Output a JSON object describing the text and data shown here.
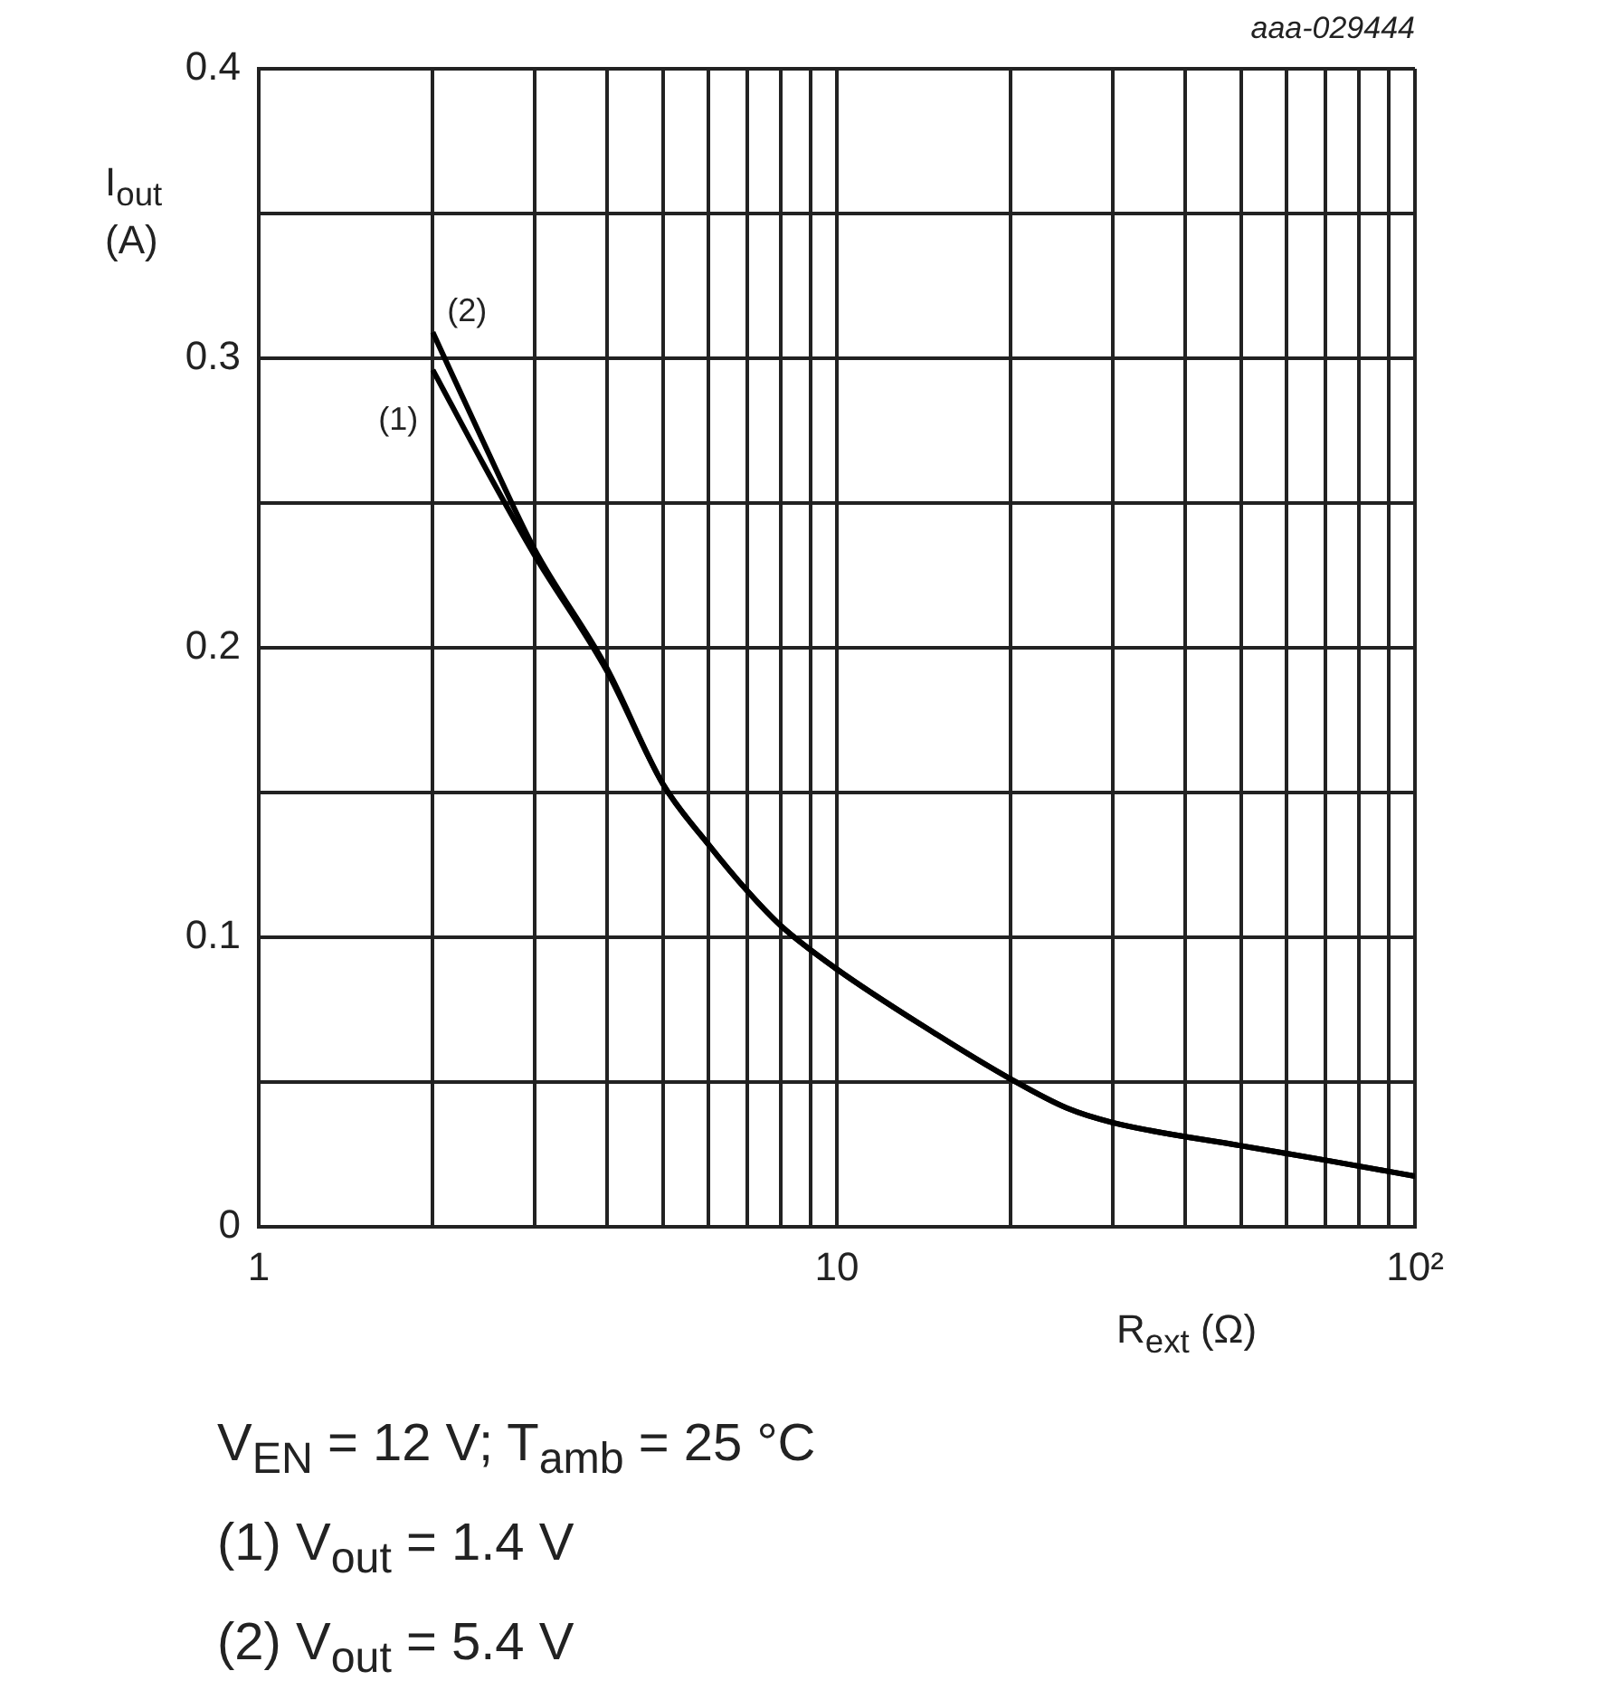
{
  "chart_data": {
    "type": "line",
    "xlabel": "R$_{ext}$ (Ω)",
    "ylabel": "I$_{out}$ (A)",
    "log": "x",
    "grid": true,
    "legend": false,
    "marker": "none",
    "line_style": "solid",
    "xlim": [
      1,
      100
    ],
    "ylim": [
      0,
      0.4
    ],
    "xticks": [
      1,
      {
        "value": 2,
        "label": null
      },
      {
        "value": 3,
        "label": null
      },
      {
        "value": 4,
        "label": null
      },
      {
        "value": 5,
        "label": null
      },
      {
        "value": 6,
        "label": null
      },
      {
        "value": 7,
        "label": null
      },
      {
        "value": 8,
        "label": null
      },
      {
        "value": 9,
        "label": null
      },
      10,
      {
        "value": 20,
        "label": null
      },
      {
        "value": 30,
        "label": null
      },
      {
        "value": 40,
        "label": null
      },
      {
        "value": 50,
        "label": null
      },
      {
        "value": 60,
        "label": null
      },
      {
        "value": 70,
        "label": null
      },
      {
        "value": 80,
        "label": null
      },
      {
        "value": 90,
        "label": null
      },
      {
        "value": 100,
        "label": "10²"
      }
    ],
    "yticks": [
      0,
      {
        "value": 0.05,
        "label": null
      },
      0.1,
      {
        "value": 0.15,
        "label": null
      },
      0.2,
      {
        "value": 0.25,
        "label": null
      },
      0.3,
      {
        "value": 0.35,
        "label": null
      },
      0.4
    ],
    "series": [
      {
        "name": "(1)",
        "color": "#000000",
        "x": [
          2,
          2.5,
          3,
          4,
          5,
          6,
          7,
          8,
          10,
          15,
          20,
          25,
          30,
          50,
          70,
          100
        ],
        "values": [
          0.296,
          0.26,
          0.232,
          0.192,
          0.153,
          0.132,
          0.116,
          0.104,
          0.089,
          0.066,
          0.051,
          0.041,
          0.036,
          0.028,
          0.023,
          0.0175
        ]
      },
      {
        "name": "(2)",
        "color": "#000000",
        "x": [
          2,
          2.5,
          3,
          4,
          5,
          6,
          7,
          8,
          10,
          15,
          20,
          25,
          30,
          50,
          70,
          100
        ],
        "values": [
          0.309,
          0.267,
          0.234,
          0.193,
          0.153,
          0.132,
          0.116,
          0.104,
          0.089,
          0.066,
          0.051,
          0.041,
          0.036,
          0.028,
          0.023,
          0.0175
        ]
      }
    ],
    "annotations": [
      "aaa-029444",
      "V$_{EN}$ = 12 V; T$_{amb}$ = 25 °C",
      "(1) V$_{out}$ = 1.4 V",
      "(2) V$_{out}$ = 5.4 V"
    ]
  }
}
